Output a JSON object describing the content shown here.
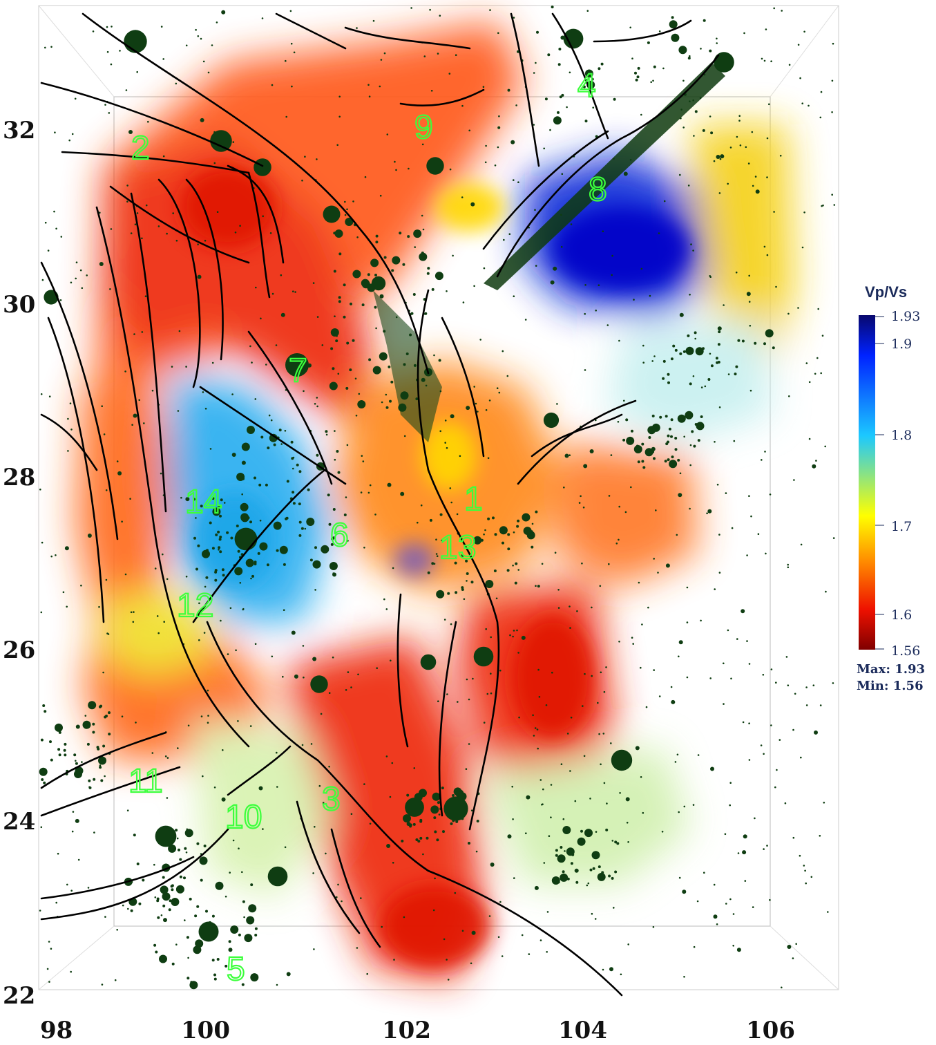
{
  "map": {
    "x_ticks": [
      "98",
      "100",
      "102",
      "104",
      "106"
    ],
    "y_ticks": [
      "32",
      "30",
      "28",
      "26",
      "24",
      "22"
    ],
    "regions": [
      "1",
      "2",
      "3",
      "4",
      "5",
      "6",
      "7",
      "8",
      "9",
      "10",
      "11",
      "12",
      "13",
      "14"
    ]
  },
  "colorbar": {
    "title": "Vp/Vs",
    "ticks": [
      "1.93",
      "1.9",
      "1.8",
      "1.7",
      "1.6",
      "1.56"
    ],
    "max_label": "Max: 1.93",
    "min_label": "Min: 1.56",
    "colors": [
      "#08086e",
      "#0022ff",
      "#1cc8ff",
      "#ffff00",
      "#ff8800",
      "#ee1100",
      "#800000"
    ]
  }
}
